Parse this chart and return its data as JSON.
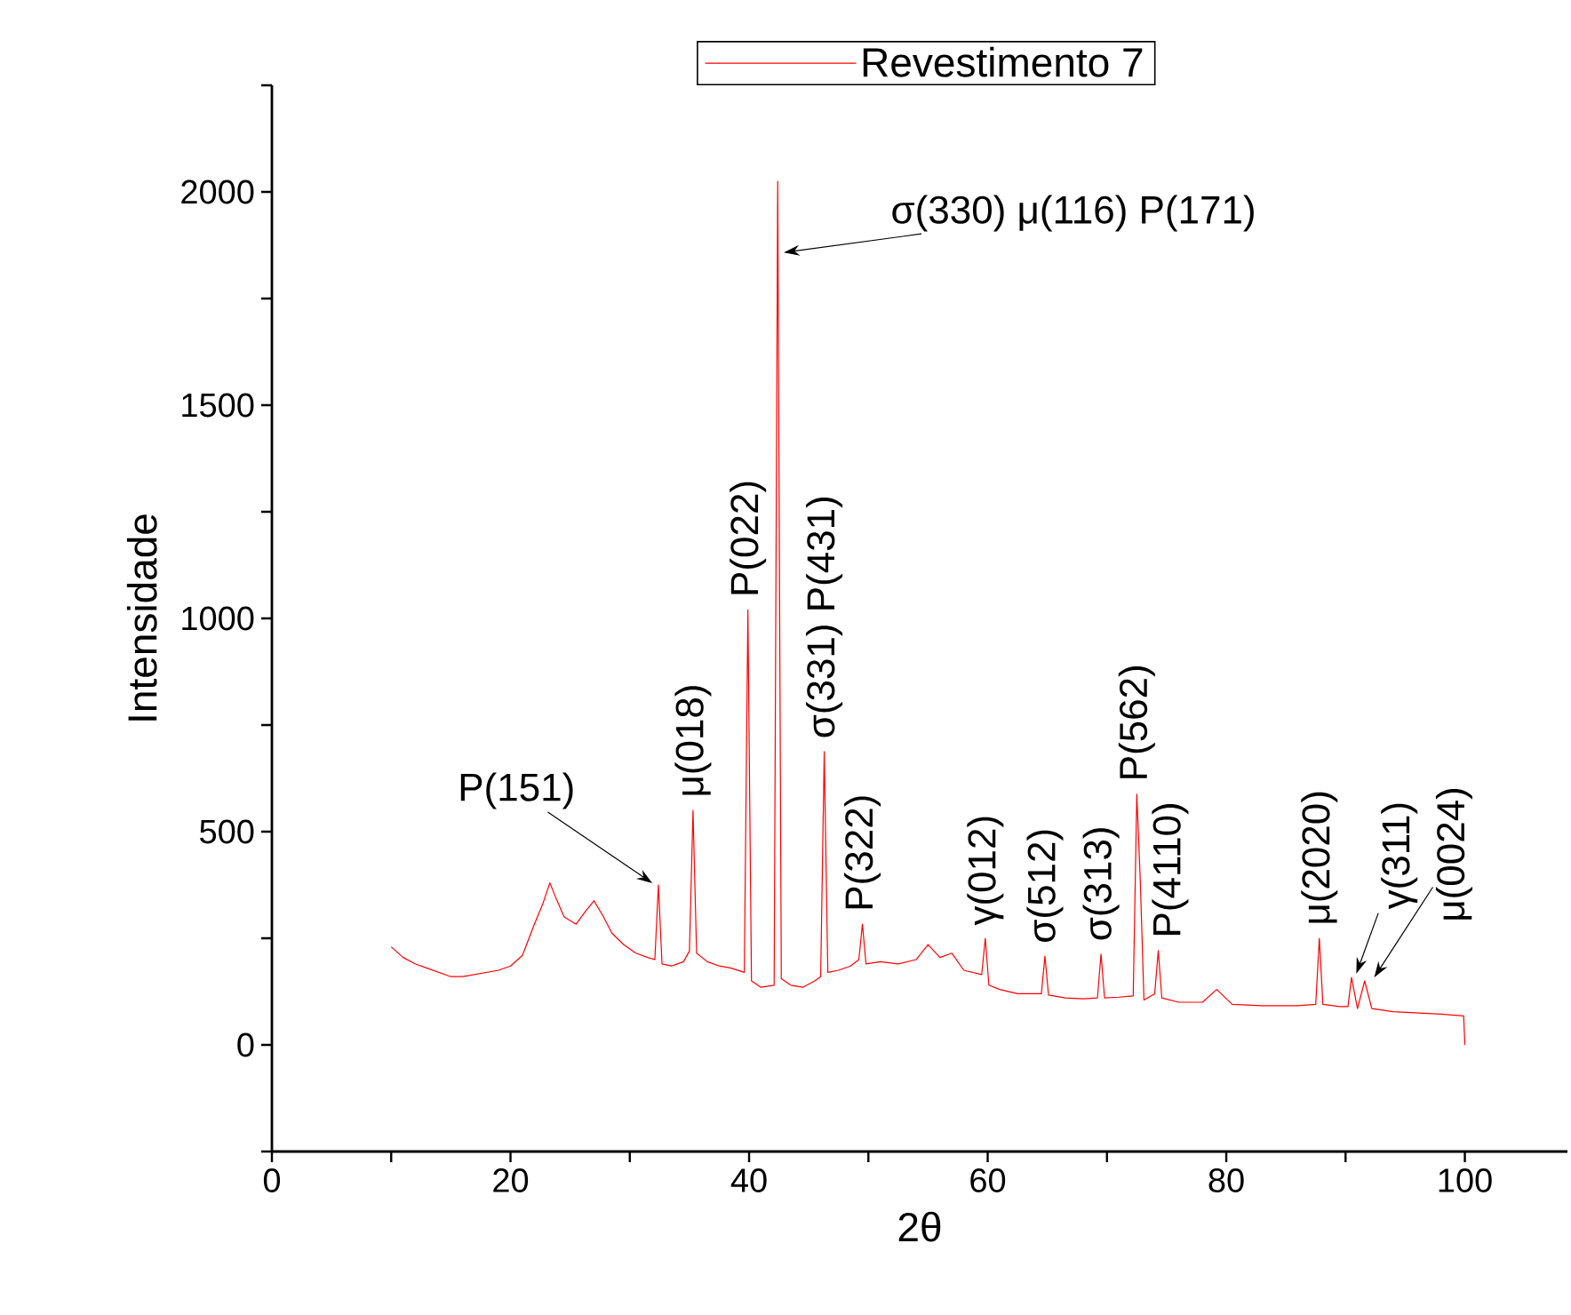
{
  "chart_data": {
    "type": "line",
    "xlabel": "2θ",
    "ylabel": "Intensidade",
    "xlim": [
      0,
      108.6
    ],
    "ylim": [
      -250,
      2250
    ],
    "xticks": [
      0,
      {
        "value": 10,
        "label": null
      },
      20,
      {
        "value": 30,
        "label": null
      },
      40,
      {
        "value": 50,
        "label": null
      },
      60,
      {
        "value": 70,
        "label": null
      },
      80,
      {
        "value": 90,
        "label": null
      },
      100
    ],
    "yticks": [
      {
        "value": -250,
        "label": null
      },
      0,
      {
        "value": 250,
        "label": null
      },
      500,
      {
        "value": 750,
        "label": null
      },
      1000,
      {
        "value": 1250,
        "label": null
      },
      1500,
      {
        "value": 1750,
        "label": null
      },
      2000,
      {
        "value": 2250,
        "label": null
      }
    ],
    "legend": "top",
    "series": [
      {
        "name": "Revestimento 7",
        "color": "#ff0000",
        "x": [
          10,
          11,
          12,
          13,
          14,
          15,
          16,
          17,
          18,
          19,
          20,
          21,
          22,
          22.7,
          23.3,
          23.8,
          24.5,
          25.5,
          26.2,
          27,
          27.8,
          28.5,
          29.5,
          30.5,
          31.5,
          32.1,
          32.4,
          32.7,
          33.5,
          34.5,
          35.0,
          35.3,
          35.6,
          36.5,
          37.5,
          38.5,
          39.6,
          39.9,
          40.2,
          41,
          42.1,
          42.4,
          42.7,
          43.5,
          44.5,
          45.5,
          46.0,
          46.3,
          46.6,
          47.5,
          48.5,
          49.2,
          49.5,
          49.8,
          51,
          52.5,
          54,
          55,
          56,
          57,
          58,
          59.5,
          59.8,
          60.1,
          61,
          62.5,
          64.5,
          64.8,
          65.1,
          66.5,
          68,
          69.2,
          69.5,
          69.8,
          71,
          72.2,
          72.5,
          72.8,
          73.1,
          74,
          74.3,
          74.6,
          76,
          78,
          79.2,
          80.5,
          83,
          86,
          87.5,
          87.8,
          88.1,
          89.5,
          90.2,
          90.5,
          91,
          91.6,
          92.2,
          94,
          96,
          98,
          99.9,
          100
        ],
        "values": [
          230,
          205,
          190,
          180,
          170,
          160,
          160,
          165,
          170,
          175,
          185,
          210,
          283,
          330,
          380,
          345,
          300,
          283,
          310,
          338,
          300,
          262,
          235,
          215,
          205,
          200,
          375,
          190,
          185,
          195,
          220,
          550,
          215,
          195,
          185,
          180,
          170,
          1020,
          150,
          135,
          140,
          2025,
          155,
          140,
          135,
          150,
          160,
          688,
          170,
          175,
          185,
          200,
          283,
          190,
          195,
          190,
          200,
          235,
          205,
          215,
          175,
          165,
          250,
          140,
          130,
          120,
          120,
          208,
          117,
          110,
          108,
          110,
          213,
          110,
          112,
          115,
          588,
          380,
          105,
          120,
          221,
          110,
          100,
          100,
          130,
          95,
          92,
          92,
          95,
          250,
          95,
          90,
          90,
          158,
          85,
          150,
          85,
          78,
          75,
          72,
          68,
          0
        ]
      }
    ],
    "annotations": [
      {
        "text": "P(151)",
        "x": 32.4,
        "y": 375
      },
      {
        "text": "μ(018)",
        "x": 35.3,
        "y": 550
      },
      {
        "text": "P(022)",
        "x": 39.9,
        "y": 1020
      },
      {
        "text": "σ(330) μ(116) P(171)",
        "x": 42.4,
        "y": 1860
      },
      {
        "text": "σ(331) P(431)",
        "x": 46.3,
        "y": 688
      },
      {
        "text": "P(322)",
        "x": 49.5,
        "y": 283
      },
      {
        "text": "γ(012)",
        "x": 59.8,
        "y": 250
      },
      {
        "text": "σ(512)",
        "x": 64.8,
        "y": 208
      },
      {
        "text": "σ(313)",
        "x": 69.5,
        "y": 213
      },
      {
        "text": "P(562)",
        "x": 72.5,
        "y": 588
      },
      {
        "text": "P(4110)",
        "x": 74.3,
        "y": 221
      },
      {
        "text": "μ(2020)",
        "x": 87.8,
        "y": 250
      },
      {
        "text": "γ(311)",
        "x": 90.5,
        "y": 158
      },
      {
        "text": "μ(0024)",
        "x": 91.6,
        "y": 150
      }
    ]
  }
}
